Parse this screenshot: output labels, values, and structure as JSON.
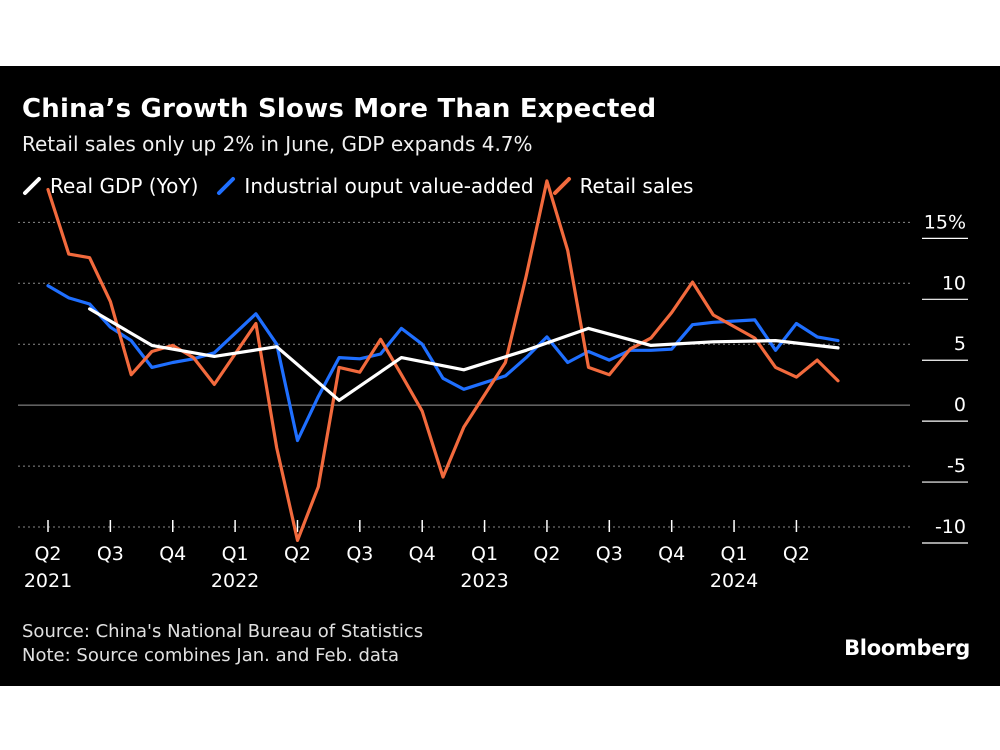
{
  "title": "China’s Growth Slows More Than Expected",
  "subtitle": "Retail sales only up 2% in June, GDP expands 4.7%",
  "source": "Source: China's National Bureau of Statistics",
  "note": "Note: Source combines Jan. and Feb. data",
  "brand": "Bloomberg",
  "colors": {
    "gdp": "#ffffff",
    "industrial": "#1f6fff",
    "retail": "#f26a3d",
    "background": "#000000"
  },
  "chart_data": {
    "type": "line",
    "title": "China’s Growth Slows More Than Expected",
    "ylim": [
      -10,
      17
    ],
    "yticks": [
      15,
      10,
      5,
      0,
      -5,
      -10
    ],
    "ytick_labels": [
      "15%",
      "10",
      "5",
      "0",
      "-5",
      "-10"
    ],
    "x_range": [
      "2021-04",
      "2024-06"
    ],
    "xtick_labels": [
      {
        "q": "Q2",
        "year": "2021",
        "month": "2021-04"
      },
      {
        "q": "Q3",
        "year": "",
        "month": "2021-07"
      },
      {
        "q": "Q4",
        "year": "",
        "month": "2021-10"
      },
      {
        "q": "Q1",
        "year": "2022",
        "month": "2022-01"
      },
      {
        "q": "Q2",
        "year": "",
        "month": "2022-04"
      },
      {
        "q": "Q3",
        "year": "",
        "month": "2022-07"
      },
      {
        "q": "Q4",
        "year": "",
        "month": "2022-10"
      },
      {
        "q": "Q1",
        "year": "2023",
        "month": "2023-01"
      },
      {
        "q": "Q2",
        "year": "",
        "month": "2023-04"
      },
      {
        "q": "Q3",
        "year": "",
        "month": "2023-07"
      },
      {
        "q": "Q4",
        "year": "",
        "month": "2023-10"
      },
      {
        "q": "Q1",
        "year": "2024",
        "month": "2024-01"
      },
      {
        "q": "Q2",
        "year": "",
        "month": "2024-04"
      }
    ],
    "legend_position": "top-left",
    "series": [
      {
        "name": "Real GDP (YoY)",
        "key": "gdp",
        "points": [
          [
            "2021-06",
            7.9
          ],
          [
            "2021-09",
            4.9
          ],
          [
            "2021-12",
            4.0
          ],
          [
            "2022-03",
            4.8
          ],
          [
            "2022-06",
            0.4
          ],
          [
            "2022-09",
            3.9
          ],
          [
            "2022-12",
            2.9
          ],
          [
            "2023-03",
            4.5
          ],
          [
            "2023-06",
            6.3
          ],
          [
            "2023-09",
            4.9
          ],
          [
            "2023-12",
            5.2
          ],
          [
            "2024-03",
            5.3
          ],
          [
            "2024-06",
            4.7
          ]
        ]
      },
      {
        "name": "Industrial ouput value-added",
        "key": "industrial",
        "points": [
          [
            "2021-04",
            9.8
          ],
          [
            "2021-05",
            8.8
          ],
          [
            "2021-06",
            8.3
          ],
          [
            "2021-07",
            6.4
          ],
          [
            "2021-08",
            5.3
          ],
          [
            "2021-09",
            3.1
          ],
          [
            "2021-10",
            3.5
          ],
          [
            "2021-11",
            3.8
          ],
          [
            "2021-12",
            4.3
          ],
          [
            "2022-02",
            7.5
          ],
          [
            "2022-03",
            5.0
          ],
          [
            "2022-04",
            -2.9
          ],
          [
            "2022-05",
            0.7
          ],
          [
            "2022-06",
            3.9
          ],
          [
            "2022-07",
            3.8
          ],
          [
            "2022-08",
            4.2
          ],
          [
            "2022-09",
            6.3
          ],
          [
            "2022-10",
            5.0
          ],
          [
            "2022-11",
            2.2
          ],
          [
            "2022-12",
            1.3
          ],
          [
            "2023-02",
            2.4
          ],
          [
            "2023-03",
            3.9
          ],
          [
            "2023-04",
            5.6
          ],
          [
            "2023-05",
            3.5
          ],
          [
            "2023-06",
            4.4
          ],
          [
            "2023-07",
            3.7
          ],
          [
            "2023-08",
            4.5
          ],
          [
            "2023-09",
            4.5
          ],
          [
            "2023-10",
            4.6
          ],
          [
            "2023-11",
            6.6
          ],
          [
            "2023-12",
            6.8
          ],
          [
            "2024-02",
            7.0
          ],
          [
            "2024-03",
            4.5
          ],
          [
            "2024-04",
            6.7
          ],
          [
            "2024-05",
            5.6
          ],
          [
            "2024-06",
            5.3
          ]
        ]
      },
      {
        "name": "Retail sales",
        "key": "retail",
        "points": [
          [
            "2021-04",
            17.7
          ],
          [
            "2021-05",
            12.4
          ],
          [
            "2021-06",
            12.1
          ],
          [
            "2021-07",
            8.5
          ],
          [
            "2021-08",
            2.5
          ],
          [
            "2021-09",
            4.4
          ],
          [
            "2021-10",
            4.9
          ],
          [
            "2021-11",
            3.9
          ],
          [
            "2021-12",
            1.7
          ],
          [
            "2022-02",
            6.7
          ],
          [
            "2022-03",
            -3.5
          ],
          [
            "2022-04",
            -11.1
          ],
          [
            "2022-05",
            -6.7
          ],
          [
            "2022-06",
            3.1
          ],
          [
            "2022-07",
            2.7
          ],
          [
            "2022-08",
            5.4
          ],
          [
            "2022-09",
            2.5
          ],
          [
            "2022-10",
            -0.5
          ],
          [
            "2022-11",
            -5.9
          ],
          [
            "2022-12",
            -1.8
          ],
          [
            "2023-02",
            3.5
          ],
          [
            "2023-03",
            10.6
          ],
          [
            "2023-04",
            18.4
          ],
          [
            "2023-05",
            12.7
          ],
          [
            "2023-06",
            3.1
          ],
          [
            "2023-07",
            2.5
          ],
          [
            "2023-08",
            4.6
          ],
          [
            "2023-09",
            5.5
          ],
          [
            "2023-10",
            7.6
          ],
          [
            "2023-11",
            10.1
          ],
          [
            "2023-12",
            7.4
          ],
          [
            "2024-02",
            5.5
          ],
          [
            "2024-03",
            3.1
          ],
          [
            "2024-04",
            2.3
          ],
          [
            "2024-05",
            3.7
          ],
          [
            "2024-06",
            2.0
          ]
        ]
      }
    ]
  }
}
